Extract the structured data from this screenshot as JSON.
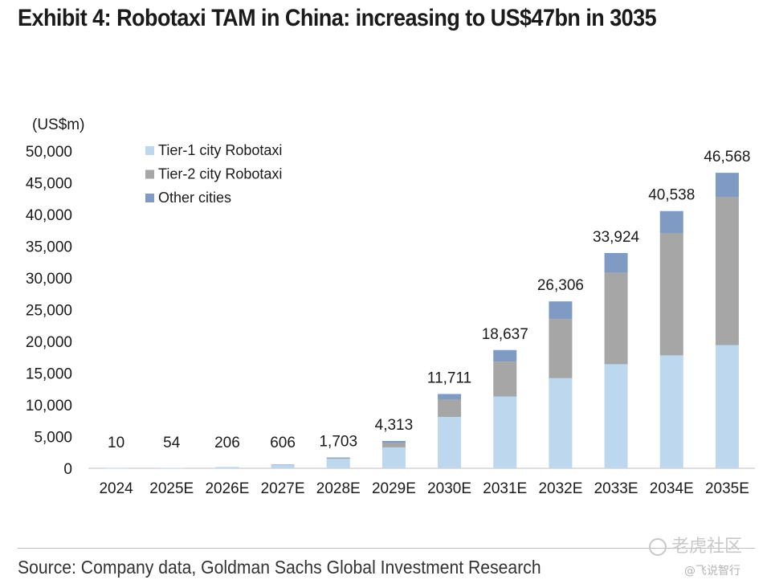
{
  "title": "Exhibit 4: Robotaxi TAM in China: increasing to US$47bn in 3035",
  "source": "Source: Company data, Goldman Sachs Global Investment Research",
  "watermark": {
    "main": "老虎社区",
    "sub": "@飞说智行"
  },
  "colors": {
    "tier1": "#bdd7ee",
    "tier2": "#a6a6a6",
    "other": "#7f9bc3",
    "axis": "#bfbfbf",
    "text": "#1a1a1a"
  },
  "chart_data": {
    "type": "bar",
    "stacked": true,
    "unit_label": "(US$m)",
    "title": "Exhibit 4: Robotaxi TAM in China: increasing to US$47bn in 3035",
    "xlabel": "",
    "ylabel": "(US$m)",
    "ylim": [
      0,
      50000
    ],
    "y_ticks": [
      0,
      5000,
      10000,
      15000,
      20000,
      25000,
      30000,
      35000,
      40000,
      45000,
      50000
    ],
    "y_tick_labels": [
      "0",
      "5,000",
      "10,000",
      "15,000",
      "20,000",
      "25,000",
      "30,000",
      "35,000",
      "40,000",
      "45,000",
      "50,000"
    ],
    "grid": false,
    "legend_position": "top-left",
    "categories": [
      "2024",
      "2025E",
      "2026E",
      "2027E",
      "2028E",
      "2029E",
      "2030E",
      "2031E",
      "2032E",
      "2033E",
      "2034E",
      "2035E"
    ],
    "series": [
      {
        "name": "Tier-1 city Robotaxi",
        "color": "#bdd7ee",
        "values": [
          10,
          54,
          206,
          600,
          1500,
          3300,
          8100,
          11300,
          14200,
          16400,
          17800,
          19400
        ]
      },
      {
        "name": "Tier-2 city Robotaxi",
        "color": "#a6a6a6",
        "values": [
          0,
          0,
          0,
          6,
          150,
          700,
          2700,
          5500,
          9300,
          14400,
          19200,
          23300
        ]
      },
      {
        "name": "Other cities",
        "color": "#7f9bc3",
        "values": [
          0,
          0,
          0,
          0,
          53,
          313,
          911,
          1837,
          2806,
          3124,
          3538,
          3868
        ]
      }
    ],
    "totals": [
      10,
      54,
      206,
      606,
      1703,
      4313,
      11711,
      18637,
      26306,
      33924,
      40538,
      46568
    ],
    "total_labels": [
      "10",
      "54",
      "206",
      "606",
      "1,703",
      "4,313",
      "11,711",
      "18,637",
      "26,306",
      "33,924",
      "40,538",
      "46,568"
    ]
  }
}
